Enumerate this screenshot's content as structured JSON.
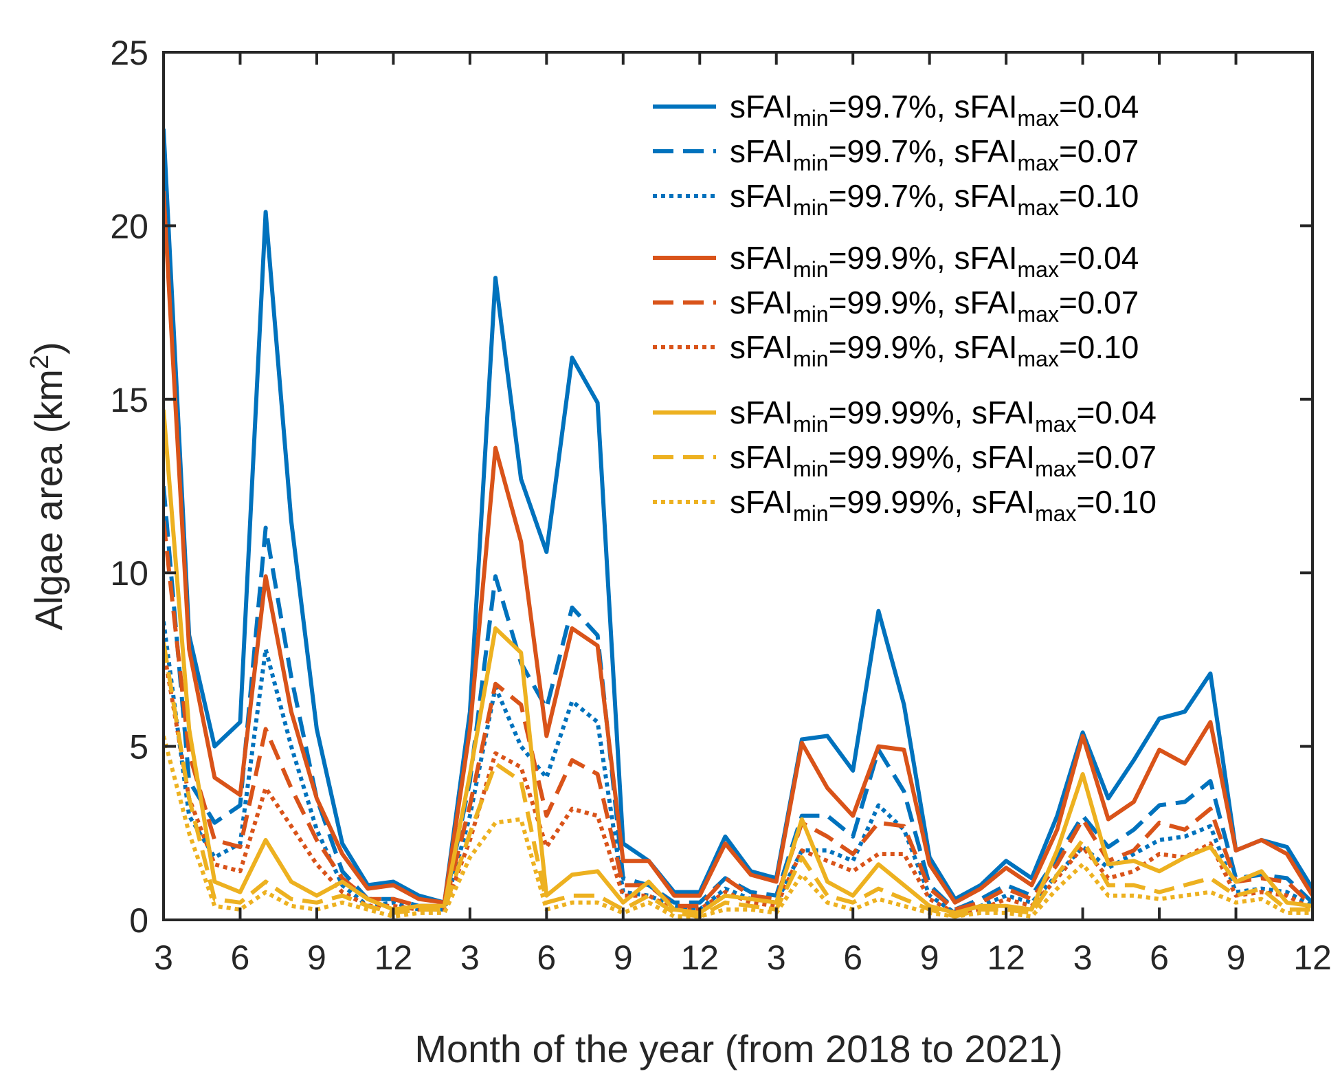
{
  "chart_data": {
    "type": "line",
    "title": "",
    "xlabel": "Month of the year (from 2018 to 2021)",
    "ylabel": "Algae area (km",
    "ylabel_superscript": "2",
    "ylabel_close": ")",
    "xlim": [
      3,
      48
    ],
    "ylim": [
      0,
      25
    ],
    "yticks": [
      0,
      5,
      10,
      15,
      20,
      25
    ],
    "xtick_positions": [
      3,
      6,
      9,
      12,
      15,
      18,
      21,
      24,
      27,
      30,
      33,
      36,
      39,
      42,
      45,
      48
    ],
    "xtick_labels": [
      "3",
      "6",
      "9",
      "12",
      "3",
      "6",
      "9",
      "12",
      "3",
      "6",
      "9",
      "12",
      "3",
      "6",
      "9",
      "12"
    ],
    "x": [
      3,
      4,
      5,
      6,
      7,
      8,
      9,
      10,
      11,
      12,
      13,
      14,
      15,
      16,
      17,
      18,
      19,
      20,
      21,
      22,
      23,
      24,
      25,
      26,
      27,
      28,
      29,
      30,
      31,
      32,
      33,
      34,
      35,
      36,
      37,
      38,
      39,
      40,
      41,
      42,
      43,
      44,
      45,
      46,
      47,
      48
    ],
    "colors": {
      "blue": "#0072BD",
      "orange": "#D95319",
      "yellow": "#EDB120"
    },
    "series": [
      {
        "prefix": "sFAI",
        "sub1": "min",
        "mid": "=99.7%, sFAI",
        "sub2": "max",
        "suffix": "=0.04",
        "color": "#0072BD",
        "style": "solid",
        "values": [
          22.8,
          8.2,
          5.0,
          5.7,
          20.4,
          11.5,
          5.5,
          2.2,
          1.0,
          1.1,
          0.7,
          0.5,
          6.0,
          18.5,
          12.7,
          10.6,
          16.2,
          14.9,
          2.2,
          1.7,
          0.8,
          0.8,
          2.4,
          1.4,
          1.2,
          5.2,
          5.3,
          4.3,
          8.9,
          6.2,
          1.8,
          0.6,
          1.0,
          1.7,
          1.2,
          3.0,
          5.4,
          3.5,
          4.6,
          5.8,
          6.0,
          7.1,
          2.0,
          2.3,
          2.1,
          0.9
        ]
      },
      {
        "prefix": "sFAI",
        "sub1": "min",
        "mid": "=99.7%, sFAI",
        "sub2": "max",
        "suffix": "=0.07",
        "color": "#0072BD",
        "style": "dashed",
        "values": [
          12.5,
          4.0,
          2.8,
          3.3,
          11.3,
          7.0,
          3.5,
          1.4,
          0.6,
          0.6,
          0.4,
          0.4,
          4.0,
          9.9,
          7.4,
          6.1,
          9.0,
          8.2,
          1.2,
          1.0,
          0.5,
          0.5,
          1.2,
          0.8,
          0.7,
          3.0,
          3.0,
          2.4,
          4.9,
          3.7,
          1.0,
          0.3,
          0.6,
          1.0,
          0.7,
          1.8,
          3.0,
          2.1,
          2.6,
          3.3,
          3.4,
          4.0,
          1.2,
          1.3,
          1.2,
          0.5
        ]
      },
      {
        "prefix": "sFAI",
        "sub1": "min",
        "mid": "=99.7%, sFAI",
        "sub2": "max",
        "suffix": "=0.10",
        "color": "#0072BD",
        "style": "dotted",
        "values": [
          8.6,
          3.0,
          1.8,
          2.2,
          7.8,
          5.0,
          2.6,
          1.0,
          0.4,
          0.5,
          0.3,
          0.3,
          3.0,
          6.7,
          5.0,
          4.1,
          6.3,
          5.7,
          0.8,
          0.7,
          0.4,
          0.3,
          0.9,
          0.6,
          0.5,
          2.0,
          2.0,
          1.7,
          3.3,
          2.6,
          0.7,
          0.2,
          0.4,
          0.7,
          0.5,
          1.3,
          2.1,
          1.5,
          1.9,
          2.3,
          2.4,
          2.7,
          0.8,
          0.9,
          0.8,
          0.4
        ]
      },
      {
        "prefix": "sFAI",
        "sub1": "min",
        "mid": "=99.9%, sFAI",
        "sub2": "max",
        "suffix": "=0.04",
        "color": "#D95319",
        "style": "solid",
        "values": [
          21.0,
          7.8,
          4.1,
          3.6,
          9.9,
          6.0,
          3.5,
          1.9,
          0.9,
          1.0,
          0.6,
          0.5,
          5.5,
          13.6,
          10.9,
          5.3,
          8.4,
          7.9,
          1.7,
          1.7,
          0.7,
          0.7,
          2.2,
          1.3,
          1.1,
          5.1,
          3.8,
          3.0,
          5.0,
          4.9,
          1.6,
          0.5,
          0.9,
          1.5,
          1.0,
          2.6,
          5.3,
          2.9,
          3.4,
          4.9,
          4.5,
          5.7,
          2.0,
          2.3,
          1.9,
          0.7
        ]
      },
      {
        "prefix": "sFAI",
        "sub1": "min",
        "mid": "=99.9%, sFAI",
        "sub2": "max",
        "suffix": "=0.07",
        "color": "#D95319",
        "style": "dashed",
        "values": [
          11.5,
          4.8,
          2.3,
          2.1,
          5.5,
          3.8,
          2.3,
          1.2,
          0.6,
          0.6,
          0.4,
          0.4,
          3.3,
          6.8,
          6.2,
          3.0,
          4.6,
          4.2,
          1.0,
          1.0,
          0.4,
          0.4,
          1.2,
          0.7,
          0.6,
          2.8,
          2.4,
          1.9,
          2.8,
          2.7,
          0.9,
          0.3,
          0.5,
          0.9,
          0.6,
          1.6,
          2.9,
          1.7,
          2.0,
          2.8,
          2.6,
          3.2,
          1.1,
          1.2,
          1.1,
          0.4
        ]
      },
      {
        "prefix": "sFAI",
        "sub1": "min",
        "mid": "=99.9%, sFAI",
        "sub2": "max",
        "suffix": "=0.10",
        "color": "#D95319",
        "style": "dotted",
        "values": [
          7.8,
          3.5,
          1.6,
          1.4,
          3.8,
          2.7,
          1.6,
          0.8,
          0.4,
          0.4,
          0.3,
          0.3,
          2.3,
          4.8,
          4.4,
          2.1,
          3.2,
          3.0,
          0.7,
          0.7,
          0.3,
          0.3,
          0.8,
          0.5,
          0.4,
          2.0,
          1.7,
          1.4,
          1.9,
          1.9,
          0.6,
          0.2,
          0.3,
          0.6,
          0.4,
          1.2,
          2.1,
          1.2,
          1.4,
          1.9,
          1.8,
          2.2,
          0.7,
          0.8,
          0.7,
          0.3
        ]
      },
      {
        "prefix": "sFAI",
        "sub1": "min",
        "mid": "=99.99%, sFAI",
        "sub2": "max",
        "suffix": "=0.04",
        "color": "#EDB120",
        "style": "solid",
        "values": [
          14.7,
          5.5,
          1.1,
          0.8,
          2.3,
          1.1,
          0.7,
          1.1,
          0.6,
          0.3,
          0.4,
          0.4,
          4.2,
          8.4,
          7.7,
          0.7,
          1.3,
          1.4,
          0.5,
          1.1,
          0.3,
          0.2,
          0.7,
          0.6,
          0.5,
          2.9,
          1.1,
          0.7,
          1.6,
          1.0,
          0.4,
          0.2,
          0.4,
          0.4,
          0.3,
          2.0,
          4.2,
          1.6,
          1.7,
          1.4,
          1.8,
          2.1,
          1.1,
          1.4,
          0.5,
          0.4
        ]
      },
      {
        "prefix": "sFAI",
        "sub1": "min",
        "mid": "=99.99%, sFAI",
        "sub2": "max",
        "suffix": "=0.07",
        "color": "#EDB120",
        "style": "dashed",
        "values": [
          8.0,
          3.5,
          0.6,
          0.5,
          1.1,
          0.6,
          0.5,
          0.7,
          0.4,
          0.2,
          0.3,
          0.3,
          2.5,
          4.5,
          4.0,
          0.5,
          0.7,
          0.7,
          0.3,
          0.7,
          0.2,
          0.1,
          0.5,
          0.4,
          0.3,
          1.8,
          0.7,
          0.5,
          0.9,
          0.6,
          0.3,
          0.1,
          0.3,
          0.3,
          0.2,
          1.3,
          2.3,
          1.0,
          1.0,
          0.8,
          1.0,
          1.2,
          0.7,
          0.9,
          0.3,
          0.3
        ]
      },
      {
        "prefix": "sFAI",
        "sub1": "min",
        "mid": "=99.99%, sFAI",
        "sub2": "max",
        "suffix": "=0.10",
        "color": "#EDB120",
        "style": "dotted",
        "values": [
          5.3,
          2.5,
          0.4,
          0.3,
          0.8,
          0.4,
          0.3,
          0.5,
          0.3,
          0.1,
          0.2,
          0.2,
          1.8,
          2.8,
          2.9,
          0.3,
          0.5,
          0.5,
          0.2,
          0.5,
          0.1,
          0.1,
          0.3,
          0.3,
          0.2,
          1.3,
          0.5,
          0.3,
          0.6,
          0.4,
          0.2,
          0.1,
          0.2,
          0.2,
          0.1,
          0.9,
          1.6,
          0.7,
          0.7,
          0.6,
          0.7,
          0.8,
          0.5,
          0.6,
          0.2,
          0.2
        ]
      }
    ]
  }
}
